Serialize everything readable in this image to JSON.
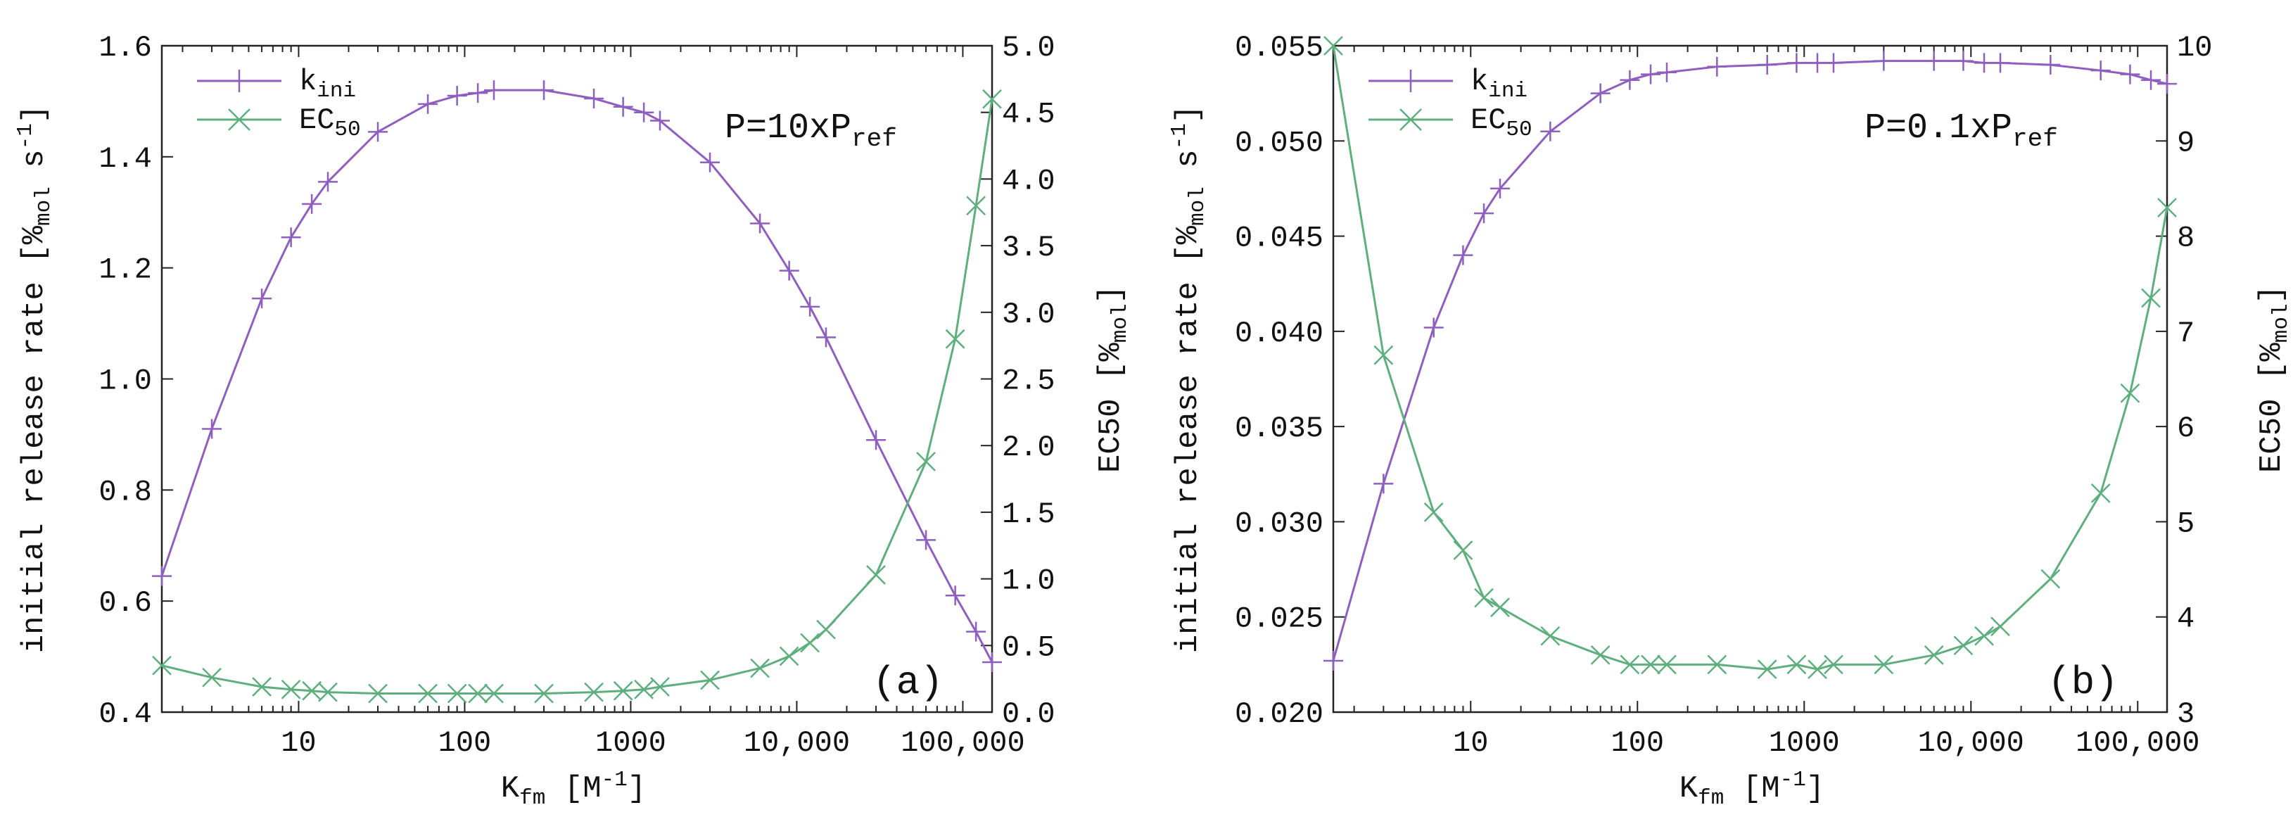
{
  "chart_data": [
    {
      "type": "line",
      "panel_label": "(a)",
      "annotation": {
        "main": "P=10xP",
        "sub": "ref"
      },
      "xlabel": {
        "main": "K",
        "sub": "fm",
        "unit_main": " [M",
        "unit_sup": "-1",
        "unit_end": "]"
      },
      "ylabel": {
        "main": "initial release rate [%",
        "sub": "mol",
        "mid": " s",
        "sup": "-1",
        "end": "]"
      },
      "y2label": {
        "main": "EC50 [%",
        "sub": "mol",
        "end": "]"
      },
      "x_scale": "log",
      "xlim": [
        1.5,
        150000
      ],
      "x_ticks": [
        10,
        100,
        1000,
        10000,
        100000
      ],
      "x_tick_labels": [
        "10",
        "100",
        "1000",
        "10,000",
        "100,000"
      ],
      "ylim": [
        0.4,
        1.6
      ],
      "y_ticks": [
        0.4,
        0.6,
        0.8,
        1.0,
        1.2,
        1.4,
        1.6
      ],
      "y_tick_labels": [
        "0.4",
        "0.6",
        "0.8",
        "1.0",
        "1.2",
        "1.4",
        "1.6"
      ],
      "y2lim": [
        0.0,
        5.0
      ],
      "y2_ticks": [
        0.0,
        0.5,
        1.0,
        1.5,
        2.0,
        2.5,
        3.0,
        3.5,
        4.0,
        4.5,
        5.0
      ],
      "y2_tick_labels": [
        "0.0",
        "0.5",
        "1.0",
        "1.5",
        "2.0",
        "2.5",
        "3.0",
        "3.5",
        "4.0",
        "4.5",
        "5.0"
      ],
      "legend_position": "top-left",
      "series": [
        {
          "name": "k",
          "name_sub": "ini",
          "marker": "plus",
          "color": "#8f5fbf",
          "axis": "left",
          "x": [
            1.5,
            3,
            6,
            9,
            12,
            15,
            30,
            60,
            90,
            120,
            150,
            300,
            600,
            900,
            1200,
            1500,
            3000,
            6000,
            9000,
            12000,
            15000,
            30000,
            60000,
            90000,
            120000,
            150000
          ],
          "y": [
            0.645,
            0.91,
            1.145,
            1.255,
            1.315,
            1.355,
            1.445,
            1.495,
            1.51,
            1.515,
            1.52,
            1.52,
            1.505,
            1.49,
            1.48,
            1.465,
            1.39,
            1.28,
            1.195,
            1.13,
            1.075,
            0.89,
            0.71,
            0.61,
            0.545,
            0.49
          ]
        },
        {
          "name": "EC",
          "name_sub": "50",
          "marker": "x",
          "color": "#5fae7e",
          "axis": "right",
          "x": [
            1.5,
            3,
            6,
            9,
            12,
            15,
            30,
            60,
            90,
            120,
            150,
            300,
            600,
            900,
            1200,
            1500,
            3000,
            6000,
            9000,
            12000,
            15000,
            30000,
            60000,
            90000,
            120000,
            150000
          ],
          "y": [
            0.35,
            0.26,
            0.19,
            0.17,
            0.16,
            0.15,
            0.14,
            0.14,
            0.14,
            0.14,
            0.14,
            0.14,
            0.15,
            0.16,
            0.17,
            0.19,
            0.24,
            0.33,
            0.42,
            0.52,
            0.62,
            1.03,
            1.88,
            2.8,
            3.8,
            4.6
          ]
        }
      ]
    },
    {
      "type": "line",
      "panel_label": "(b)",
      "annotation": {
        "main": "P=0.1xP",
        "sub": "ref"
      },
      "xlabel": {
        "main": "K",
        "sub": "fm",
        "unit_main": " [M",
        "unit_sup": "-1",
        "unit_end": "]"
      },
      "ylabel": {
        "main": "initial release rate [%",
        "sub": "mol",
        "mid": " s",
        "sup": "-1",
        "end": "]"
      },
      "y2label": {
        "main": "EC50 [%",
        "sub": "mol",
        "end": "]"
      },
      "x_scale": "log",
      "xlim": [
        1.5,
        150000
      ],
      "x_ticks": [
        10,
        100,
        1000,
        10000,
        100000
      ],
      "x_tick_labels": [
        "10",
        "100",
        "1000",
        "10,000",
        "100,000"
      ],
      "ylim": [
        0.02,
        0.055
      ],
      "y_ticks": [
        0.02,
        0.025,
        0.03,
        0.035,
        0.04,
        0.045,
        0.05,
        0.055
      ],
      "y_tick_labels": [
        "0.020",
        "0.025",
        "0.030",
        "0.035",
        "0.040",
        "0.045",
        "0.050",
        "0.055"
      ],
      "y2lim": [
        3,
        10
      ],
      "y2_ticks": [
        3,
        4,
        5,
        6,
        7,
        8,
        9,
        10
      ],
      "y2_tick_labels": [
        "3",
        "4",
        "5",
        "6",
        "7",
        "8",
        "9",
        "10"
      ],
      "legend_position": "top-left",
      "series": [
        {
          "name": "k",
          "name_sub": "ini",
          "marker": "plus",
          "color": "#8f5fbf",
          "axis": "left",
          "x": [
            1.5,
            3,
            6,
            9,
            12,
            15,
            30,
            60,
            90,
            120,
            150,
            300,
            600,
            900,
            1200,
            1500,
            3000,
            6000,
            9000,
            12000,
            15000,
            30000,
            60000,
            90000,
            120000,
            150000
          ],
          "y": [
            0.0227,
            0.032,
            0.0402,
            0.044,
            0.0462,
            0.0475,
            0.0505,
            0.0525,
            0.0532,
            0.0535,
            0.0536,
            0.0539,
            0.054,
            0.0541,
            0.0541,
            0.0541,
            0.0542,
            0.0542,
            0.0542,
            0.0541,
            0.0541,
            0.054,
            0.0537,
            0.0535,
            0.0532,
            0.053
          ]
        },
        {
          "name": "EC",
          "name_sub": "50",
          "marker": "x",
          "color": "#5fae7e",
          "axis": "right",
          "x": [
            1.5,
            3,
            6,
            9,
            12,
            15,
            30,
            60,
            90,
            120,
            150,
            300,
            600,
            900,
            1200,
            1500,
            3000,
            6000,
            9000,
            12000,
            15000,
            30000,
            60000,
            90000,
            120000,
            150000
          ],
          "y": [
            10.0,
            6.75,
            5.1,
            4.7,
            4.2,
            4.1,
            3.8,
            3.6,
            3.5,
            3.5,
            3.5,
            3.5,
            3.45,
            3.5,
            3.45,
            3.5,
            3.5,
            3.6,
            3.7,
            3.8,
            3.9,
            4.4,
            5.3,
            6.35,
            7.35,
            8.3
          ]
        }
      ]
    }
  ]
}
